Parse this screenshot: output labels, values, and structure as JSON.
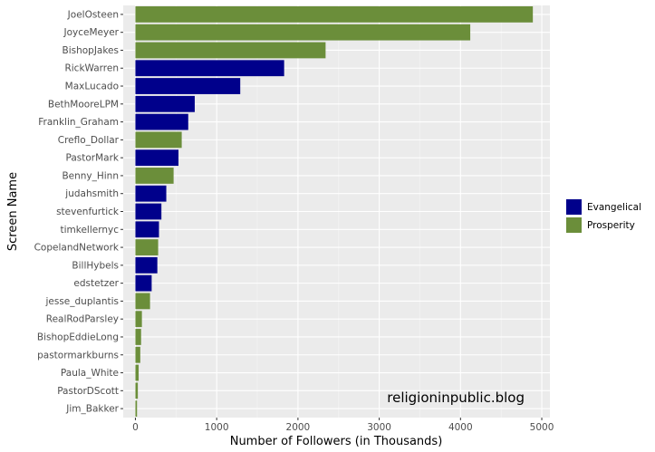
{
  "chart_data": {
    "type": "bar",
    "orientation": "horizontal",
    "xlabel": "Number of Followers (in Thousands)",
    "ylabel": "Screen Name",
    "xlim": [
      -150,
      5100
    ],
    "xticks": [
      0,
      1000,
      2000,
      3000,
      4000,
      5000
    ],
    "grid": true,
    "legend": {
      "placement": "right",
      "items": [
        {
          "name": "Evangelical",
          "color": "#00008b"
        },
        {
          "name": "Prosperity",
          "color": "#6b8e3a"
        }
      ]
    },
    "annotation": "religioninpublic.blog",
    "categories": [
      "JoelOsteen",
      "JoyceMeyer",
      "BishopJakes",
      "RickWarren",
      "MaxLucado",
      "BethMooreLPM",
      "Franklin_Graham",
      "Creflo_Dollar",
      "PastorMark",
      "Benny_Hinn",
      "judahsmith",
      "stevenfurtick",
      "timkellernyc",
      "CopelandNetwork",
      "BillHybels",
      "edstetzer",
      "jesse_duplantis",
      "RealRodParsley",
      "BishopEddieLong",
      "pastormarkburns",
      "Paula_White",
      "PastorDScott",
      "Jim_Bakker"
    ],
    "values": [
      4890,
      4120,
      2340,
      1830,
      1290,
      730,
      650,
      570,
      530,
      470,
      380,
      320,
      290,
      280,
      270,
      200,
      180,
      80,
      70,
      60,
      40,
      30,
      20
    ],
    "groups": [
      "Prosperity",
      "Prosperity",
      "Prosperity",
      "Evangelical",
      "Evangelical",
      "Evangelical",
      "Evangelical",
      "Prosperity",
      "Evangelical",
      "Prosperity",
      "Evangelical",
      "Evangelical",
      "Evangelical",
      "Prosperity",
      "Evangelical",
      "Evangelical",
      "Prosperity",
      "Prosperity",
      "Prosperity",
      "Prosperity",
      "Prosperity",
      "Prosperity",
      "Prosperity"
    ]
  }
}
